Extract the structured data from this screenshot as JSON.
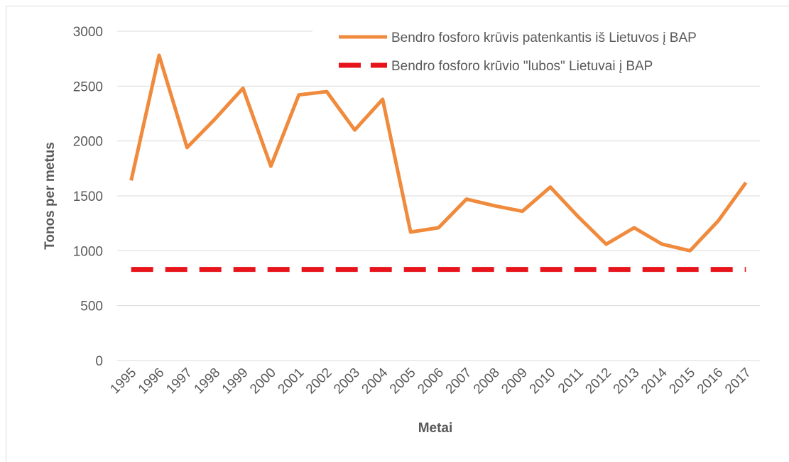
{
  "chart_data": {
    "type": "line",
    "x_label": "Metai",
    "y_label": "Tonos per metus",
    "categories": [
      "1995",
      "1996",
      "1997",
      "1998",
      "1999",
      "2000",
      "2001",
      "2002",
      "2003",
      "2004",
      "2005",
      "2006",
      "2007",
      "2008",
      "2009",
      "2010",
      "2011",
      "2012",
      "2013",
      "2014",
      "2015",
      "2016",
      "2017"
    ],
    "series": [
      {
        "name": "Bendro fosforo krūvis patenkantis iš Lietuvos į BAP",
        "color": "#f08a3c",
        "dashed": false,
        "values": [
          1640,
          2780,
          1940,
          2200,
          2480,
          1770,
          2420,
          2450,
          2100,
          2380,
          1170,
          1210,
          1470,
          1410,
          1360,
          1580,
          1310,
          1060,
          1210,
          1060,
          1000,
          1270,
          1620
        ]
      },
      {
        "name": "Bendro fosforo krūvio \"lubos\" Lietuvai į BAP",
        "color": "#e8141b",
        "dashed": true,
        "values": [
          830,
          830,
          830,
          830,
          830,
          830,
          830,
          830,
          830,
          830,
          830,
          830,
          830,
          830,
          830,
          830,
          830,
          830,
          830,
          830,
          830,
          830,
          830
        ]
      }
    ],
    "ylim": [
      0,
      3000
    ],
    "yticks": [
      0,
      500,
      1000,
      1500,
      2000,
      2500,
      3000
    ],
    "grid": true,
    "legend": "upper right"
  }
}
